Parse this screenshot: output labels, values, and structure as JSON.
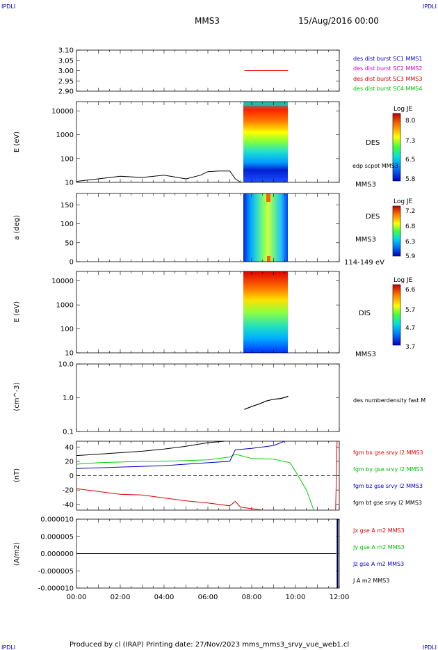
{
  "header": {
    "left_tag": "IPDLI",
    "right_tag": "IPDLI",
    "spacecraft": "MMS3",
    "date": "15/Aug/2016 00:00"
  },
  "footer": {
    "text": "Produced by cl (IRAP)   Printing date: 27/Nov/2023   mms_mms3_srvy_vue_web1.cl",
    "left_tag": "IPDLI",
    "right_tag": "IPDLI"
  },
  "chart_data": [
    {
      "id": "sc-panel",
      "type": "line",
      "xlim": [
        "00:00",
        "12:00"
      ],
      "ylim": [
        2.9,
        3.1
      ],
      "yticks": [
        "3.10",
        "3.05",
        "3.00",
        "2.95",
        "2.90"
      ],
      "legend": [
        {
          "name": "des dist burst SC1 MMS1",
          "color": "#0000cc"
        },
        {
          "name": "des dist burst SC2 MMS2",
          "color": "#cc00cc"
        },
        {
          "name": "des dist burst SC3 MMS3",
          "color": "#cc0000"
        },
        {
          "name": "des dist burst SC4 MMS4",
          "color": "#00bb00"
        }
      ],
      "series": [
        {
          "name": "des dist burst SC3 MMS3",
          "x": [
            "07:40",
            "09:40"
          ],
          "values": [
            3.0,
            3.0
          ]
        }
      ]
    },
    {
      "id": "des-energy",
      "type": "heatmap",
      "ylabel": "E (eV)",
      "yscale": "log",
      "ylim": [
        10,
        25000
      ],
      "yticks": [
        "10000",
        "1000",
        "100",
        "10"
      ],
      "x_range": [
        "07:40",
        "09:40"
      ],
      "colorbar": {
        "title": "Log JE",
        "ticks": [
          "8.0",
          "7.3",
          "6.5",
          "5.8"
        ]
      },
      "labels": [
        "DES",
        "edp scpot MMS3",
        "MMS3"
      ],
      "overlay": {
        "name": "edp scpot MMS3",
        "x": [
          "00:00",
          "01:00",
          "02:00",
          "03:00",
          "04:00",
          "05:00",
          "05:40",
          "06:00",
          "06:30",
          "07:00",
          "07:15",
          "07:30"
        ],
        "values": [
          11,
          14,
          18,
          16,
          20,
          14,
          20,
          28,
          30,
          30,
          14,
          10
        ]
      }
    },
    {
      "id": "des-pitch",
      "type": "heatmap",
      "ylabel": "a (deg)",
      "ylim": [
        0,
        180
      ],
      "yticks": [
        "150",
        "100",
        "50",
        "0"
      ],
      "x_range": [
        "07:40",
        "09:40"
      ],
      "colorbar": {
        "title": "Log JE",
        "ticks": [
          "7.2",
          "6.8",
          "6.3",
          "5.9"
        ]
      },
      "labels": [
        "DES",
        "MMS3",
        "114-149 eV"
      ]
    },
    {
      "id": "dis-energy",
      "type": "heatmap",
      "ylabel": "E (eV)",
      "yscale": "log",
      "ylim": [
        10,
        25000
      ],
      "yticks": [
        "10000",
        "1000",
        "100",
        "10"
      ],
      "x_range": [
        "07:40",
        "09:40"
      ],
      "colorbar": {
        "title": "Log JE",
        "ticks": [
          "6.6",
          "5.7",
          "4.7",
          "3.7"
        ]
      },
      "labels": [
        "DIS",
        "MMS3"
      ]
    },
    {
      "id": "density",
      "type": "line",
      "ylabel": "(cm^-3)",
      "yscale": "log",
      "ylim": [
        0.1,
        10
      ],
      "yticks": [
        "10.0",
        "1.0",
        "0.1"
      ],
      "labels": [
        "des numberdensity fast M"
      ],
      "series": [
        {
          "name": "des numberdensity fast M",
          "x": [
            "07:40",
            "08:00",
            "08:20",
            "08:40",
            "09:00",
            "09:20",
            "09:40"
          ],
          "values": [
            0.45,
            0.55,
            0.65,
            0.8,
            0.9,
            0.95,
            1.1
          ]
        }
      ]
    },
    {
      "id": "fgm",
      "type": "line",
      "ylabel": "(nT)",
      "ylim": [
        -48,
        48
      ],
      "yticks": [
        "40",
        "20",
        "0",
        "-20",
        "-40"
      ],
      "series": [
        {
          "name": "fgm bx gse srvy l2 MMS3",
          "color": "#dd0000",
          "x": [
            "00:00",
            "01:00",
            "02:00",
            "03:00",
            "04:00",
            "05:00",
            "06:00",
            "07:00",
            "07:15",
            "07:30",
            "08:00",
            "08:30"
          ],
          "values": [
            -18,
            -22,
            -26,
            -27,
            -31,
            -35,
            -38,
            -42,
            -36,
            -44,
            -46,
            -48
          ]
        },
        {
          "name": "fgm by gse srvy l2 MMS3",
          "color": "#00cc00",
          "x": [
            "00:00",
            "01:00",
            "02:00",
            "03:00",
            "04:00",
            "05:00",
            "06:00",
            "07:00",
            "07:15",
            "08:00",
            "09:00",
            "09:45",
            "10:00",
            "10:30",
            "10:50"
          ],
          "values": [
            16,
            18,
            19,
            20,
            20,
            21,
            22,
            26,
            30,
            24,
            23,
            18,
            6,
            -20,
            -48
          ]
        },
        {
          "name": "fgm bz gse srvy l2 MMS3",
          "color": "#0000cc",
          "x": [
            "00:00",
            "01:00",
            "02:00",
            "03:00",
            "04:00",
            "05:00",
            "06:00",
            "07:00",
            "07:15",
            "08:00",
            "09:00",
            "09:30"
          ],
          "values": [
            10,
            11,
            12,
            13,
            14,
            16,
            18,
            20,
            36,
            38,
            42,
            48
          ]
        },
        {
          "name": "fgm bt gse srvy l2 MMS3",
          "color": "#000000",
          "x": [
            "00:00",
            "01:00",
            "02:00",
            "03:00",
            "04:00",
            "05:00",
            "06:00",
            "06:45"
          ],
          "values": [
            28,
            30,
            32,
            34,
            37,
            41,
            46,
            48
          ]
        }
      ]
    },
    {
      "id": "current",
      "type": "line",
      "ylabel": "(A/m2)",
      "ylim": [
        -1e-05,
        1e-05
      ],
      "yticks": [
        "0.000010",
        "0.000005",
        "0.000000",
        "-0.000005",
        "-0.000010"
      ],
      "xticks": [
        "00:00",
        "02:00",
        "04:00",
        "06:00",
        "08:00",
        "10:00",
        "12:00"
      ],
      "series": [
        {
          "name": "Jx gse A m2 MMS3",
          "color": "#dd0000",
          "x": [
            "00:00",
            "11:50"
          ],
          "values": [
            0,
            0
          ]
        },
        {
          "name": "Jy gse A m2 MMS3",
          "color": "#00cc00",
          "x": [
            "00:00",
            "11:50"
          ],
          "values": [
            0,
            0
          ]
        },
        {
          "name": "Jz gse A m2 MMS3",
          "color": "#0000cc",
          "x": [
            "00:00",
            "11:50"
          ],
          "values": [
            0,
            0
          ]
        },
        {
          "name": "J A m2 MMS3",
          "color": "#000000",
          "x": [
            "00:00",
            "11:50"
          ],
          "values": [
            0,
            0
          ]
        }
      ]
    }
  ]
}
